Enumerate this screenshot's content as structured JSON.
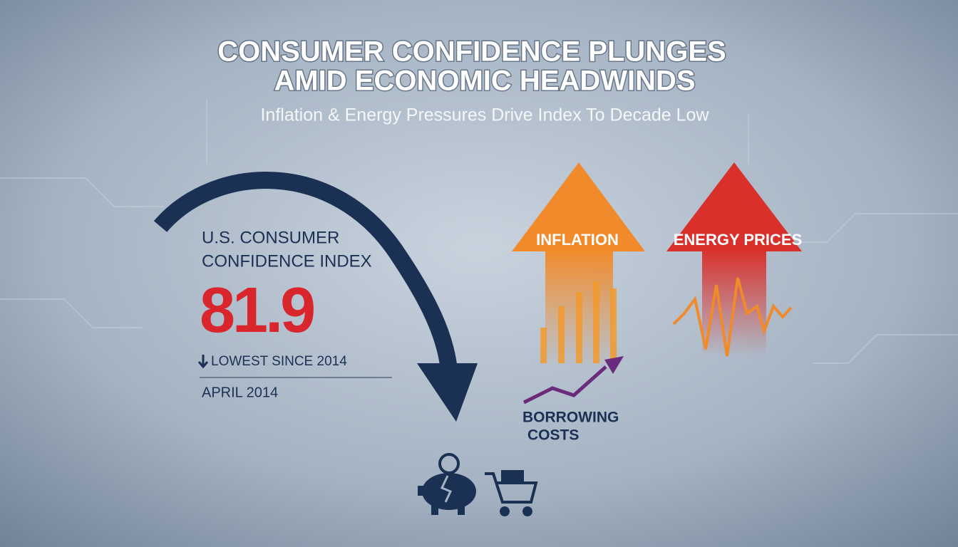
{
  "header": {
    "title_lines": [
      "CONSUMER CONFIDENCE PLUNGES",
      "AMID ECONOMIC HEADWINDS"
    ],
    "subtitle": "Inflation & Energy Pressures Drive Index To Decade Low"
  },
  "index_panel": {
    "label_lines": [
      "U.S. CONSUMER",
      "CONFIDENCE INDEX"
    ],
    "value": 81.9,
    "note": "LOWEST SINCE 2014",
    "date": "APRIL 2014"
  },
  "pressures": {
    "inflation": "INFLATION",
    "energy": "ENERGY PRICES",
    "borrowing_lines": [
      "BORROWING",
      "COSTS"
    ]
  }
}
